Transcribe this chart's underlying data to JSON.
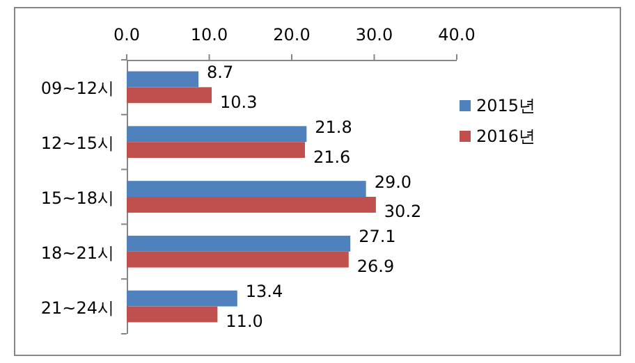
{
  "chart_data": {
    "type": "bar",
    "orientation": "horizontal",
    "categories": [
      "09~12시",
      "12~15시",
      "15~18시",
      "18~21시",
      "21~24시"
    ],
    "series": [
      {
        "name": "2015년",
        "color": "#4f81bd",
        "values": [
          8.7,
          21.8,
          29.0,
          27.1,
          13.4
        ],
        "value_labels": [
          "8.7",
          "21.8",
          "29.0",
          "27.1",
          "13.4"
        ]
      },
      {
        "name": "2016년",
        "color": "#c0504d",
        "values": [
          10.3,
          21.6,
          30.2,
          26.9,
          11.0
        ],
        "value_labels": [
          "10.3",
          "21.6",
          "30.2",
          "26.9",
          "11.0"
        ]
      }
    ],
    "xlim": [
      0,
      40
    ],
    "xticks": [
      {
        "value": 0,
        "label": "0.0"
      },
      {
        "value": 10,
        "label": "10.0"
      },
      {
        "value": 20,
        "label": "20.0"
      },
      {
        "value": 30,
        "label": "30.0"
      },
      {
        "value": 40,
        "label": "40.0"
      }
    ],
    "grid": false,
    "legend": "right"
  }
}
